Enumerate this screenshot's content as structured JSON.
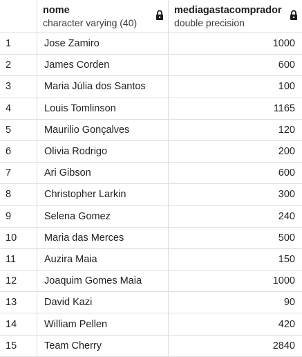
{
  "columns": [
    {
      "name": "nome",
      "type": "character varying (40)",
      "locked": true
    },
    {
      "name": "mediagastacomprador",
      "type": "double precision",
      "locked": true
    }
  ],
  "rows": [
    {
      "n": "1",
      "nome": "Jose Zamiro",
      "valor": "1000"
    },
    {
      "n": "2",
      "nome": "James Corden",
      "valor": "600"
    },
    {
      "n": "3",
      "nome": "Maria Júlia dos Santos",
      "valor": "100"
    },
    {
      "n": "4",
      "nome": "Louis Tomlinson",
      "valor": "1165"
    },
    {
      "n": "5",
      "nome": "Maurilio Gonçalves",
      "valor": "120"
    },
    {
      "n": "6",
      "nome": "Olivia Rodrigo",
      "valor": "200"
    },
    {
      "n": "7",
      "nome": "Ari Gibson",
      "valor": "600"
    },
    {
      "n": "8",
      "nome": "Christopher Larkin",
      "valor": "300"
    },
    {
      "n": "9",
      "nome": "Selena Gomez",
      "valor": "240"
    },
    {
      "n": "10",
      "nome": "Maria das Merces",
      "valor": "500"
    },
    {
      "n": "11",
      "nome": "Auzira Maia",
      "valor": "150"
    },
    {
      "n": "12",
      "nome": "Joaquim Gomes Maia",
      "valor": "1000"
    },
    {
      "n": "13",
      "nome": "David Kazi",
      "valor": "90"
    },
    {
      "n": "14",
      "nome": "William Pellen",
      "valor": "420"
    },
    {
      "n": "15",
      "nome": "Team Cherry",
      "valor": "2840"
    }
  ],
  "icons": {
    "lock": "lock-icon"
  },
  "colors": {
    "border": "#dedede",
    "text": "#222222",
    "lock": "#1a1a1a"
  }
}
